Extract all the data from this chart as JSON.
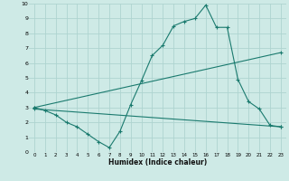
{
  "xlabel": "Humidex (Indice chaleur)",
  "bg_color": "#ceeae6",
  "line_color": "#1a7a6e",
  "grid_color": "#aed4d0",
  "xlim": [
    -0.5,
    23.5
  ],
  "ylim": [
    0,
    10
  ],
  "xticks": [
    0,
    1,
    2,
    3,
    4,
    5,
    6,
    7,
    8,
    9,
    10,
    11,
    12,
    13,
    14,
    15,
    16,
    17,
    18,
    19,
    20,
    21,
    22,
    23
  ],
  "yticks": [
    0,
    1,
    2,
    3,
    4,
    5,
    6,
    7,
    8,
    9,
    10
  ],
  "line1_x": [
    0,
    1,
    2,
    3,
    4,
    5,
    6,
    7,
    8,
    9,
    10,
    11,
    12,
    13,
    14,
    15,
    16,
    17,
    18,
    19,
    20,
    21,
    22,
    23
  ],
  "line1_y": [
    3.0,
    2.8,
    2.5,
    2.0,
    1.7,
    1.2,
    0.7,
    0.3,
    1.4,
    3.2,
    4.8,
    6.5,
    7.2,
    8.5,
    8.8,
    9.0,
    9.9,
    8.4,
    8.4,
    4.9,
    3.4,
    2.9,
    1.8,
    1.7
  ],
  "line2_x": [
    0,
    23
  ],
  "line2_y": [
    3.0,
    6.7
  ],
  "line3_x": [
    0,
    23
  ],
  "line3_y": [
    2.9,
    1.7
  ],
  "marker": "+"
}
